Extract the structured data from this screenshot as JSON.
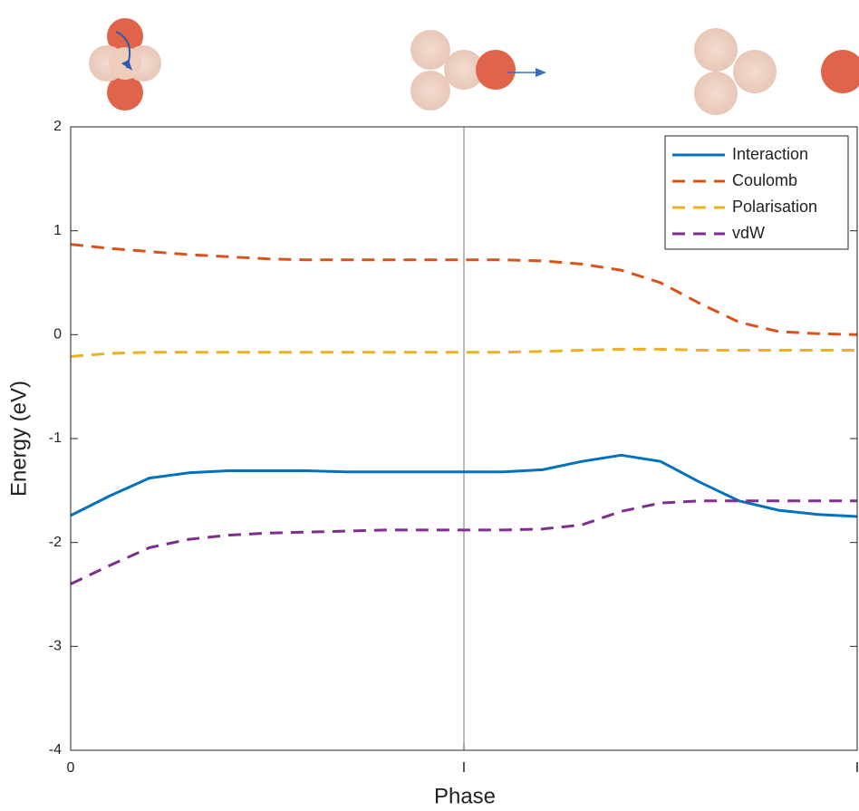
{
  "chart_data": {
    "type": "line",
    "x_label": "Phase",
    "y_label": "Energy (eV)",
    "x": [
      0,
      0.1,
      0.2,
      0.3,
      0.4,
      0.5,
      0.6,
      0.7,
      0.8,
      0.9,
      1.0,
      1.1,
      1.2,
      1.3,
      1.4,
      1.5,
      1.6,
      1.7,
      1.8,
      1.9,
      2.0
    ],
    "xlim": [
      0,
      2
    ],
    "ylim": [
      -4,
      2
    ],
    "xticks": [
      0,
      {
        "value": 1,
        "label": "I"
      },
      {
        "value": 2,
        "label": "I"
      }
    ],
    "yticks": [
      -4,
      -3,
      -2,
      -1,
      0,
      1,
      2
    ],
    "legend": "upper right",
    "series": [
      {
        "name": "Interaction",
        "color": "#0072bd",
        "dash": false,
        "values": [
          -1.74,
          -1.55,
          -1.38,
          -1.33,
          -1.31,
          -1.31,
          -1.31,
          -1.32,
          -1.32,
          -1.32,
          -1.32,
          -1.32,
          -1.3,
          -1.22,
          -1.16,
          -1.22,
          -1.42,
          -1.6,
          -1.69,
          -1.73,
          -1.75
        ]
      },
      {
        "name": "Coulomb",
        "color": "#d95319",
        "dash": true,
        "values": [
          0.87,
          0.83,
          0.8,
          0.77,
          0.75,
          0.73,
          0.72,
          0.72,
          0.72,
          0.72,
          0.72,
          0.72,
          0.71,
          0.68,
          0.62,
          0.5,
          0.3,
          0.12,
          0.03,
          0.01,
          0.0
        ]
      },
      {
        "name": "Polarisation",
        "color": "#edb120",
        "dash": true,
        "values": [
          -0.21,
          -0.18,
          -0.17,
          -0.17,
          -0.17,
          -0.17,
          -0.17,
          -0.17,
          -0.17,
          -0.17,
          -0.17,
          -0.17,
          -0.16,
          -0.15,
          -0.14,
          -0.14,
          -0.15,
          -0.15,
          -0.15,
          -0.15,
          -0.15
        ]
      },
      {
        "name": "vdW",
        "color": "#7e2f8e",
        "dash": true,
        "values": [
          -2.4,
          -2.22,
          -2.05,
          -1.97,
          -1.93,
          -1.91,
          -1.9,
          -1.89,
          -1.88,
          -1.88,
          -1.88,
          -1.88,
          -1.87,
          -1.83,
          -1.7,
          -1.62,
          -1.6,
          -1.6,
          -1.6,
          -1.6,
          -1.6
        ]
      }
    ]
  }
}
